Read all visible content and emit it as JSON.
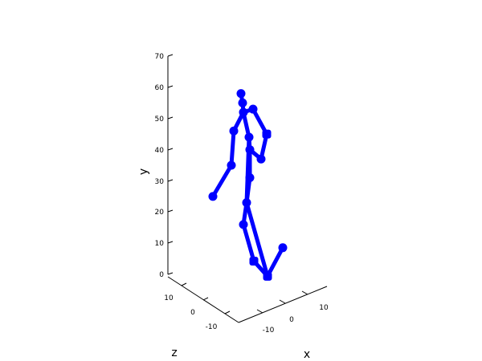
{
  "chart_data": {
    "type": "scatter",
    "projection": "3d",
    "color": "#0000ff",
    "grid": false,
    "axes": {
      "x": {
        "label": "x",
        "ticks": [
          "-10",
          "0",
          "10"
        ]
      },
      "y": {
        "label": "y",
        "ticks": [
          "0",
          "10",
          "20",
          "30",
          "40",
          "50",
          "60",
          "70"
        ],
        "range": [
          0,
          70
        ]
      },
      "z": {
        "label": "z",
        "ticks": [
          "10",
          "0",
          "-10"
        ]
      }
    },
    "joints": [
      {
        "id": "head_top",
        "y": 58
      },
      {
        "id": "head",
        "y": 55
      },
      {
        "id": "neck",
        "y": 52
      },
      {
        "id": "l_shoulder",
        "y": 46
      },
      {
        "id": "l_elbow",
        "y": 35
      },
      {
        "id": "l_hand",
        "y": 25
      },
      {
        "id": "r_shoulder",
        "y": 53
      },
      {
        "id": "r_elbow",
        "y": 45
      },
      {
        "id": "r_hand",
        "y": 37
      },
      {
        "id": "spine",
        "y": 44
      },
      {
        "id": "hip",
        "y": 40
      },
      {
        "id": "l_knee",
        "y": 31
      },
      {
        "id": "r_knee",
        "y": 23
      },
      {
        "id": "l_shin",
        "y": 16
      },
      {
        "id": "l_foot",
        "y": 4
      },
      {
        "id": "r_foot",
        "y": 3
      },
      {
        "id": "r_toe",
        "y": 7
      }
    ],
    "bones": [
      [
        "head_top",
        "head"
      ],
      [
        "head",
        "neck"
      ],
      [
        "neck",
        "l_shoulder"
      ],
      [
        "l_shoulder",
        "l_elbow"
      ],
      [
        "l_elbow",
        "l_hand"
      ],
      [
        "neck",
        "r_shoulder"
      ],
      [
        "r_shoulder",
        "r_elbow"
      ],
      [
        "r_elbow",
        "r_hand"
      ],
      [
        "neck",
        "spine"
      ],
      [
        "spine",
        "hip"
      ],
      [
        "hip",
        "r_hand"
      ],
      [
        "hip",
        "l_knee"
      ],
      [
        "l_knee",
        "r_knee"
      ],
      [
        "spine",
        "r_knee"
      ],
      [
        "r_knee",
        "l_shin"
      ],
      [
        "l_shin",
        "l_foot"
      ],
      [
        "r_knee",
        "r_foot"
      ],
      [
        "r_foot",
        "l_foot"
      ],
      [
        "r_foot",
        "r_toe"
      ]
    ]
  }
}
